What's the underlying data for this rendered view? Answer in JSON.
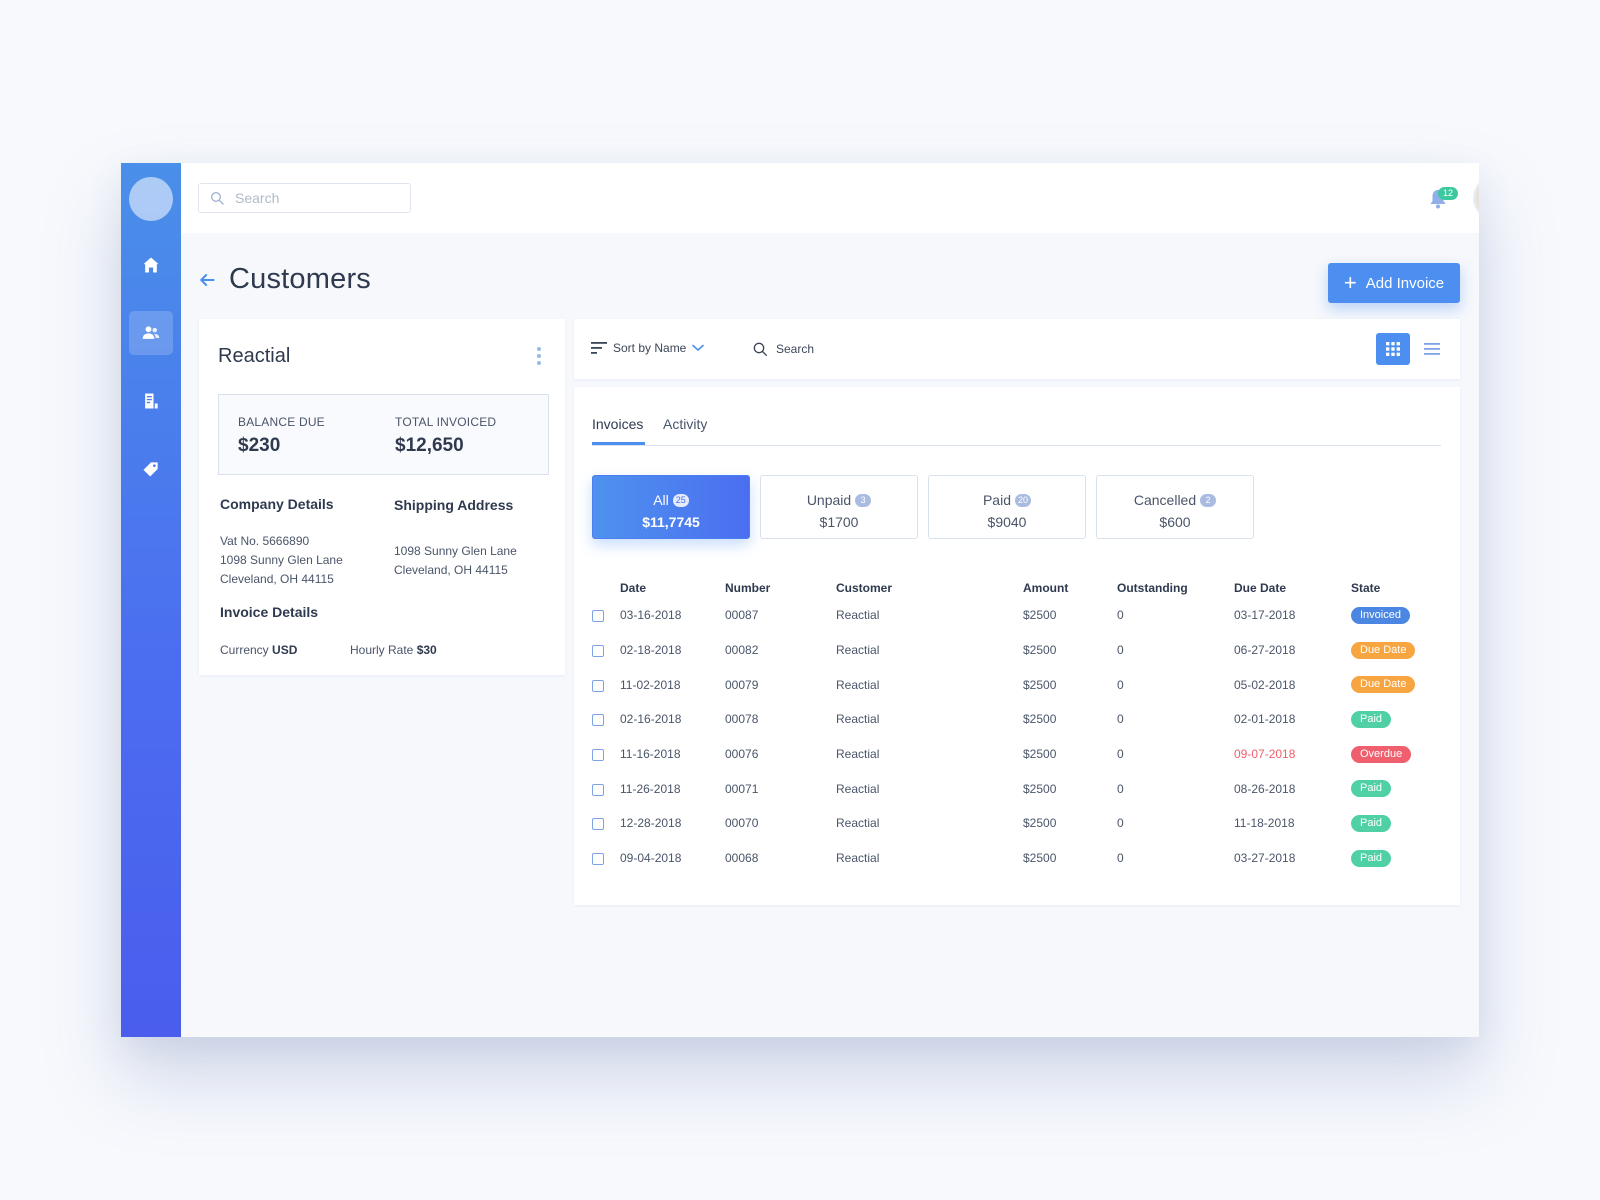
{
  "topbar": {
    "search_placeholder": "Search",
    "notification_count": "12"
  },
  "page": {
    "title": "Customers",
    "add_invoice_label": "Add Invoice"
  },
  "customer": {
    "name": "Reactial",
    "balance_due_label": "BALANCE DUE",
    "balance_due_value": "$230",
    "total_invoiced_label": "TOTAL INVOICED",
    "total_invoiced_value": "$12,650",
    "company_details_title": "Company Details",
    "company_vat": "Vat No. 5666890",
    "company_street": "1098 Sunny Glen Lane",
    "company_city": "Cleveland, OH 44115",
    "shipping_title": "Shipping Address",
    "shipping_street": "1098 Sunny Glen Lane",
    "shipping_city": "Cleveland, OH 44115",
    "invoice_details_title": "Invoice Details",
    "currency_label": "Currency",
    "currency_value": "USD",
    "hourly_rate_label": "Hourly Rate",
    "hourly_rate_value": "$30"
  },
  "toolbar": {
    "sort_label": "Sort by Name",
    "search_label": "Search"
  },
  "tabs": [
    "Invoices",
    "Activity"
  ],
  "filters": [
    {
      "label": "All",
      "count": "25",
      "value": "$11,7745"
    },
    {
      "label": "Unpaid",
      "count": "3",
      "value": "$1700"
    },
    {
      "label": "Paid",
      "count": "20",
      "value": "$9040"
    },
    {
      "label": "Cancelled",
      "count": "2",
      "value": "$600"
    }
  ],
  "table": {
    "headers": [
      "Date",
      "Number",
      "Customer",
      "Amount",
      "Outstanding",
      "Due Date",
      "State"
    ],
    "rows": [
      {
        "date": "03-16-2018",
        "number": "00087",
        "customer": "Reactial",
        "amount": "$2500",
        "outstanding": "0",
        "due": "03-17-2018",
        "state": "Invoiced"
      },
      {
        "date": "02-18-2018",
        "number": "00082",
        "customer": "Reactial",
        "amount": "$2500",
        "outstanding": "0",
        "due": "06-27-2018",
        "state": "Due Date"
      },
      {
        "date": "11-02-2018",
        "number": "00079",
        "customer": "Reactial",
        "amount": "$2500",
        "outstanding": "0",
        "due": "05-02-2018",
        "state": "Due Date"
      },
      {
        "date": "02-16-2018",
        "number": "00078",
        "customer": "Reactial",
        "amount": "$2500",
        "outstanding": "0",
        "due": "02-01-2018",
        "state": "Paid"
      },
      {
        "date": "11-16-2018",
        "number": "00076",
        "customer": "Reactial",
        "amount": "$2500",
        "outstanding": "0",
        "due": "09-07-2018",
        "state": "Overdue"
      },
      {
        "date": "11-26-2018",
        "number": "00071",
        "customer": "Reactial",
        "amount": "$2500",
        "outstanding": "0",
        "due": "08-26-2018",
        "state": "Paid"
      },
      {
        "date": "12-28-2018",
        "number": "00070",
        "customer": "Reactial",
        "amount": "$2500",
        "outstanding": "0",
        "due": "11-18-2018",
        "state": "Paid"
      },
      {
        "date": "09-04-2018",
        "number": "00068",
        "customer": "Reactial",
        "amount": "$2500",
        "outstanding": "0",
        "due": "03-27-2018",
        "state": "Paid"
      }
    ]
  },
  "state_colors": {
    "Invoiced": "#4c86e3",
    "Due Date": "#f7a541",
    "Paid": "#4fd1a5",
    "Overdue": "#ef5f6d"
  },
  "colors": {
    "accent": "#4c8ff0",
    "sidebar_top": "#4a8fe9",
    "sidebar_bottom": "#4a5ded"
  },
  "icons": {
    "sidebar": [
      "home-icon",
      "customers-icon",
      "invoices-icon",
      "tag-icon"
    ],
    "topbar": [
      "search-icon",
      "bell-icon"
    ]
  }
}
